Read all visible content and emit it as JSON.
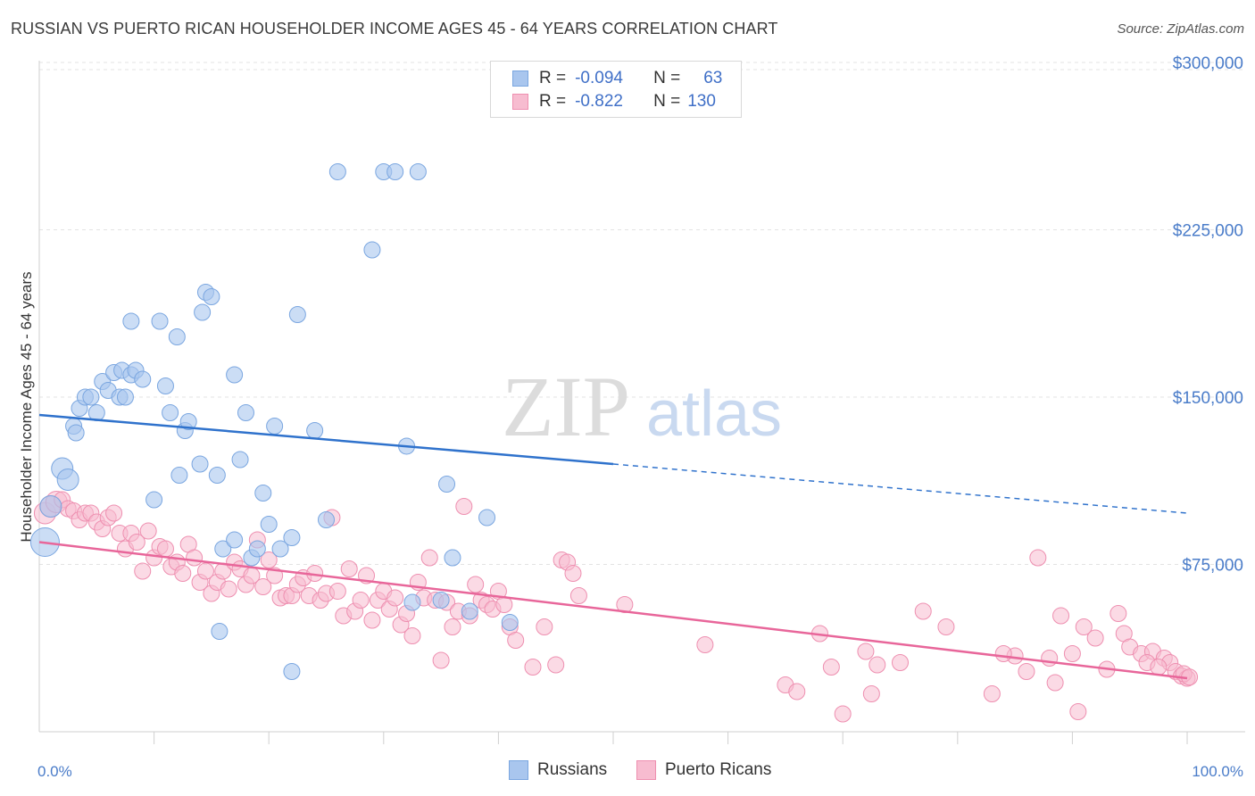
{
  "title": "RUSSIAN VS PUERTO RICAN HOUSEHOLDER INCOME AGES 45 - 64 YEARS CORRELATION CHART",
  "source": "Source: ZipAtlas.com",
  "watermark": {
    "zip": "ZIP",
    "atlas": "atlas"
  },
  "legend": {
    "r_label": "R =",
    "n_label": "N =",
    "rows": [
      {
        "r": "-0.094",
        "n": "63"
      },
      {
        "r": "-0.822",
        "n": "130"
      }
    ]
  },
  "bottom_legend": [
    "Russians",
    "Puerto Ricans"
  ],
  "colors": {
    "blue_fill": "#a9c6ee",
    "blue_stroke": "#7aa6e0",
    "blue_line": "#2f72cc",
    "pink_fill": "#f7bcd0",
    "pink_stroke": "#ee8fb0",
    "pink_line": "#e8669a",
    "tick_color": "#4a7cc9"
  },
  "chart_data": {
    "type": "scatter",
    "title": "RUSSIAN VS PUERTO RICAN HOUSEHOLDER INCOME AGES 45 - 64 YEARS CORRELATION CHART",
    "xlabel": "",
    "ylabel": "Householder Income Ages 45 - 64 years",
    "xlim": [
      0,
      100
    ],
    "ylim": [
      0,
      310000
    ],
    "x_tick_labels": [
      "0.0%",
      "100.0%"
    ],
    "y_ticks": [
      75000,
      150000,
      225000,
      300000
    ],
    "y_tick_labels": [
      "$75,000",
      "$150,000",
      "$225,000",
      "$300,000"
    ],
    "grid": true,
    "legend_position": "top-center",
    "series": [
      {
        "name": "Russians",
        "r": -0.094,
        "n": 63,
        "trend": {
          "x": [
            0,
            50
          ],
          "y": [
            142000,
            120000
          ],
          "dashed_to": [
            100,
            98000
          ]
        },
        "points": [
          [
            2,
            118000
          ],
          [
            2.5,
            113000
          ],
          [
            1,
            101000
          ],
          [
            0.5,
            85000
          ],
          [
            3,
            137000
          ],
          [
            3.2,
            134000
          ],
          [
            3.5,
            145000
          ],
          [
            4,
            150000
          ],
          [
            4.5,
            150000
          ],
          [
            5,
            143000
          ],
          [
            5.5,
            157000
          ],
          [
            6,
            153000
          ],
          [
            6.5,
            161000
          ],
          [
            7,
            150000
          ],
          [
            7.5,
            150000
          ],
          [
            7.2,
            162000
          ],
          [
            8,
            160000
          ],
          [
            8.4,
            162000
          ],
          [
            9,
            158000
          ],
          [
            8,
            184000
          ],
          [
            10.5,
            184000
          ],
          [
            10,
            104000
          ],
          [
            11,
            155000
          ],
          [
            11.4,
            143000
          ],
          [
            12,
            177000
          ],
          [
            12.2,
            115000
          ],
          [
            12.7,
            135000
          ],
          [
            13,
            139000
          ],
          [
            14,
            120000
          ],
          [
            14.2,
            188000
          ],
          [
            14.5,
            197000
          ],
          [
            15,
            195000
          ],
          [
            15.5,
            115000
          ],
          [
            15.7,
            45000
          ],
          [
            16,
            82000
          ],
          [
            17,
            160000
          ],
          [
            17.5,
            122000
          ],
          [
            17,
            86000
          ],
          [
            18,
            143000
          ],
          [
            18.5,
            78000
          ],
          [
            19,
            82000
          ],
          [
            19.5,
            107000
          ],
          [
            20,
            93000
          ],
          [
            20.5,
            137000
          ],
          [
            21,
            82000
          ],
          [
            22,
            27000
          ],
          [
            22,
            87000
          ],
          [
            22.5,
            187000
          ],
          [
            24,
            135000
          ],
          [
            25,
            95000
          ],
          [
            26,
            251000
          ],
          [
            29,
            216000
          ],
          [
            30,
            251000
          ],
          [
            31,
            251000
          ],
          [
            32,
            128000
          ],
          [
            33,
            251000
          ],
          [
            35,
            59000
          ],
          [
            35.5,
            111000
          ],
          [
            36,
            78000
          ],
          [
            37.5,
            54000
          ],
          [
            39,
            96000
          ],
          [
            41,
            49000
          ],
          [
            32.5,
            58000
          ]
        ]
      },
      {
        "name": "Puerto Ricans",
        "r": -0.822,
        "n": 130,
        "trend": {
          "x": [
            0,
            100
          ],
          "y": [
            85000,
            24000
          ]
        },
        "points": [
          [
            0.5,
            98000
          ],
          [
            1,
            101000
          ],
          [
            1.5,
            103000
          ],
          [
            2,
            104000
          ],
          [
            2.5,
            100000
          ],
          [
            3,
            99000
          ],
          [
            3.5,
            95000
          ],
          [
            4,
            98000
          ],
          [
            4.5,
            98000
          ],
          [
            5,
            94000
          ],
          [
            5.5,
            91000
          ],
          [
            6,
            96000
          ],
          [
            6.5,
            98000
          ],
          [
            7,
            89000
          ],
          [
            7.5,
            82000
          ],
          [
            8,
            89000
          ],
          [
            8.5,
            85000
          ],
          [
            9,
            72000
          ],
          [
            9.5,
            90000
          ],
          [
            10,
            78000
          ],
          [
            10.5,
            83000
          ],
          [
            11,
            82000
          ],
          [
            11.5,
            74000
          ],
          [
            12,
            76000
          ],
          [
            12.5,
            71000
          ],
          [
            13,
            84000
          ],
          [
            13.5,
            78000
          ],
          [
            14,
            67000
          ],
          [
            14.5,
            72000
          ],
          [
            15,
            62000
          ],
          [
            15.5,
            67000
          ],
          [
            16,
            72000
          ],
          [
            16.5,
            64000
          ],
          [
            17,
            76000
          ],
          [
            17.5,
            73000
          ],
          [
            18,
            66000
          ],
          [
            18.5,
            70000
          ],
          [
            19,
            86000
          ],
          [
            19.5,
            65000
          ],
          [
            20,
            77000
          ],
          [
            20.5,
            70000
          ],
          [
            21,
            60000
          ],
          [
            21.5,
            61000
          ],
          [
            22,
            61000
          ],
          [
            22.5,
            66000
          ],
          [
            23,
            69000
          ],
          [
            23.5,
            61000
          ],
          [
            24,
            71000
          ],
          [
            24.5,
            59000
          ],
          [
            25,
            62000
          ],
          [
            25.5,
            96000
          ],
          [
            26,
            63000
          ],
          [
            26.5,
            52000
          ],
          [
            27,
            73000
          ],
          [
            27.5,
            54000
          ],
          [
            28,
            59000
          ],
          [
            28.5,
            70000
          ],
          [
            29,
            50000
          ],
          [
            29.5,
            59000
          ],
          [
            30,
            63000
          ],
          [
            30.5,
            55000
          ],
          [
            31,
            60000
          ],
          [
            31.5,
            48000
          ],
          [
            32,
            53000
          ],
          [
            32.5,
            43000
          ],
          [
            33,
            67000
          ],
          [
            33.5,
            60000
          ],
          [
            34,
            78000
          ],
          [
            34.5,
            59000
          ],
          [
            35,
            32000
          ],
          [
            35.5,
            58000
          ],
          [
            36,
            47000
          ],
          [
            36.5,
            54000
          ],
          [
            37,
            101000
          ],
          [
            37.5,
            52000
          ],
          [
            38,
            66000
          ],
          [
            38.5,
            59000
          ],
          [
            39,
            57000
          ],
          [
            39.5,
            55000
          ],
          [
            40,
            63000
          ],
          [
            40.5,
            57000
          ],
          [
            41,
            47000
          ],
          [
            41.5,
            41000
          ],
          [
            43,
            29000
          ],
          [
            44,
            47000
          ],
          [
            45,
            30000
          ],
          [
            45.5,
            77000
          ],
          [
            46,
            76000
          ],
          [
            46.5,
            71000
          ],
          [
            47,
            61000
          ],
          [
            51,
            57000
          ],
          [
            58,
            39000
          ],
          [
            65,
            21000
          ],
          [
            66,
            18000
          ],
          [
            68,
            44000
          ],
          [
            69,
            29000
          ],
          [
            70,
            8000
          ],
          [
            72,
            36000
          ],
          [
            72.5,
            17000
          ],
          [
            73,
            30000
          ],
          [
            75,
            31000
          ],
          [
            77,
            54000
          ],
          [
            79,
            47000
          ],
          [
            83,
            17000
          ],
          [
            85,
            34000
          ],
          [
            86,
            27000
          ],
          [
            87,
            78000
          ],
          [
            88,
            33000
          ],
          [
            88.5,
            22000
          ],
          [
            89,
            52000
          ],
          [
            90,
            35000
          ],
          [
            91,
            47000
          ],
          [
            92,
            42000
          ],
          [
            93,
            28000
          ],
          [
            94,
            53000
          ],
          [
            94.5,
            44000
          ],
          [
            95,
            38000
          ],
          [
            96,
            35000
          ],
          [
            97,
            36000
          ],
          [
            98,
            33000
          ],
          [
            98.5,
            31000
          ],
          [
            99,
            27000
          ],
          [
            99.5,
            25000
          ],
          [
            100,
            24000
          ],
          [
            96.5,
            31000
          ],
          [
            97.5,
            29000
          ],
          [
            99.7,
            26000
          ],
          [
            100.2,
            24500
          ],
          [
            90.5,
            9000
          ],
          [
            84,
            35000
          ]
        ]
      }
    ]
  }
}
